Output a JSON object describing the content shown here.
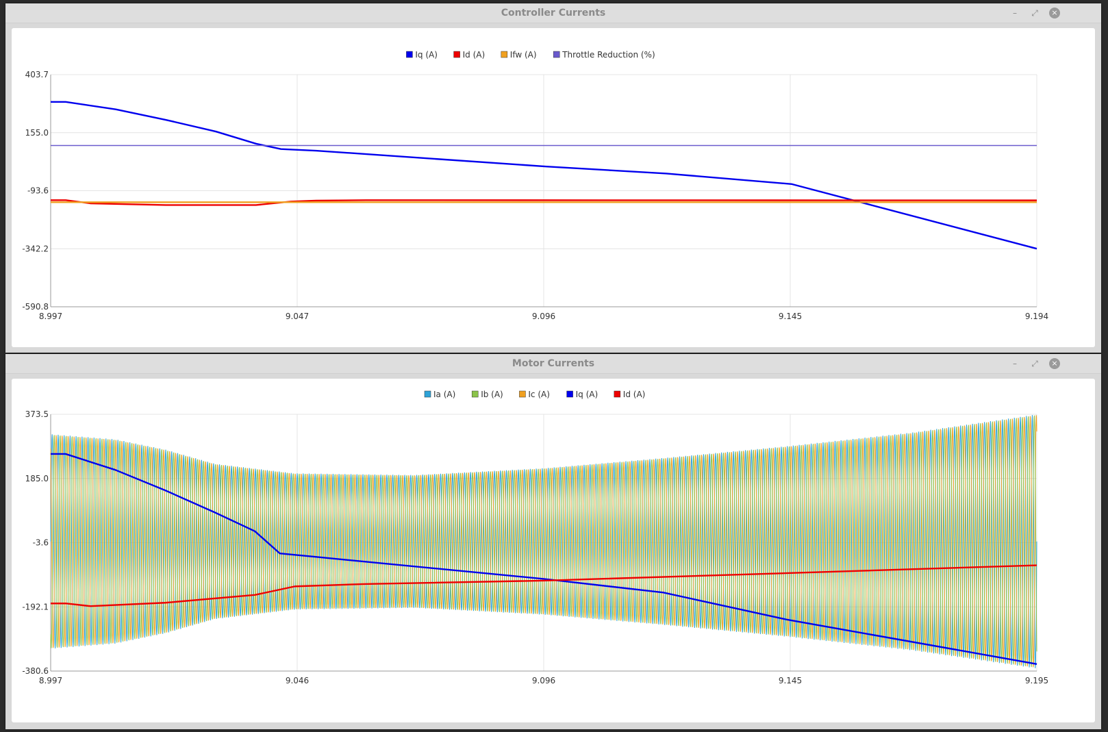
{
  "windows": [
    {
      "title": "Controller Currents",
      "controls": {
        "minimize": "–",
        "maximize": "⤢",
        "close": "×"
      }
    },
    {
      "title": "Motor Currents",
      "controls": {
        "minimize": "–",
        "maximize": "⤢",
        "close": "×"
      }
    }
  ],
  "chart_data": [
    {
      "type": "line",
      "title": "",
      "xlabel": "",
      "ylabel": "",
      "xlim": [
        8.997,
        9.194
      ],
      "ylim": [
        -590.8,
        403.7
      ],
      "x_ticks": [
        "8.997",
        "9.047",
        "9.096",
        "9.145",
        "9.194"
      ],
      "y_ticks": [
        "403.7",
        "155.0",
        "-93.6",
        "-342.2",
        "-590.8"
      ],
      "grid": true,
      "legend_position": "top-center",
      "series": [
        {
          "name": "Iq (A)",
          "color": "#0000ee",
          "x": [
            8.997,
            9.0,
            9.01,
            9.02,
            9.03,
            9.038,
            9.043,
            9.05,
            9.096,
            9.12,
            9.145,
            9.194
          ],
          "y": [
            287,
            287,
            255,
            210,
            160,
            108,
            85,
            78,
            10,
            -20,
            -65,
            -342
          ]
        },
        {
          "name": "Id (A)",
          "color": "#ee0000",
          "x": [
            8.997,
            9.0,
            9.005,
            9.02,
            9.038,
            9.045,
            9.05,
            9.06,
            9.194
          ],
          "y": [
            -134,
            -134,
            -148,
            -155,
            -155,
            -140,
            -136,
            -134,
            -135
          ]
        },
        {
          "name": "Ifw (A)",
          "color": "#f0a020",
          "x": [
            8.997,
            9.194
          ],
          "y": [
            -143,
            -143
          ]
        },
        {
          "name": "Throttle Reduction (%)",
          "color": "#6a5acd",
          "x": [
            8.997,
            9.194
          ],
          "y": [
            100,
            100
          ]
        }
      ]
    },
    {
      "type": "line",
      "title": "",
      "xlabel": "",
      "ylabel": "",
      "xlim": [
        8.997,
        9.195
      ],
      "ylim": [
        -380.6,
        373.5
      ],
      "x_ticks": [
        "8.997",
        "9.046",
        "9.096",
        "9.145",
        "9.195"
      ],
      "y_ticks": [
        "373.5",
        "185.0",
        "-3.6",
        "-192.1",
        "-380.6"
      ],
      "grid": true,
      "legend_position": "top-center",
      "phase_envelope": {
        "x": [
          8.997,
          9.01,
          9.02,
          9.03,
          9.046,
          9.07,
          9.096,
          9.12,
          9.145,
          9.17,
          9.195
        ],
        "amplitude": [
          315,
          300,
          270,
          228,
          200,
          195,
          215,
          245,
          280,
          320,
          373
        ]
      },
      "series": [
        {
          "name": "Ia (A)",
          "color": "#2ea3d8"
        },
        {
          "name": "Ib (A)",
          "color": "#8bc34a"
        },
        {
          "name": "Ic (A)",
          "color": "#f0a020"
        },
        {
          "name": "Iq (A)",
          "color": "#0000ee",
          "x": [
            8.997,
            9.0,
            9.01,
            9.02,
            9.03,
            9.038,
            9.043,
            9.05,
            9.096,
            9.12,
            9.145,
            9.195
          ],
          "y": [
            257,
            257,
            210,
            150,
            85,
            30,
            -35,
            -45,
            -110,
            -150,
            -230,
            -360
          ]
        },
        {
          "name": "Id (A)",
          "color": "#ee0000",
          "x": [
            8.997,
            9.0,
            9.005,
            9.02,
            9.038,
            9.046,
            9.06,
            9.096,
            9.145,
            9.195
          ],
          "y": [
            -182,
            -182,
            -190,
            -180,
            -157,
            -132,
            -125,
            -115,
            -93,
            -70
          ]
        }
      ]
    }
  ]
}
